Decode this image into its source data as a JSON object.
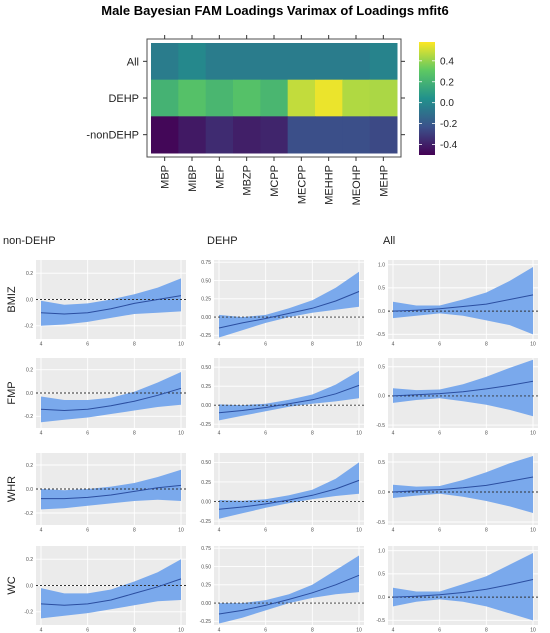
{
  "chart_data": [
    {
      "type": "heatmap",
      "title": "Male Bayesian FAM Loadings Varimax of Loadings mfit6",
      "rows": [
        "All",
        "DEHP",
        "-nonDEHP"
      ],
      "columns": [
        "MBP",
        "MIBP",
        "MEP",
        "MBZP",
        "MCPP",
        "MECPP",
        "MEHHP",
        "MEOHP",
        "MEHP"
      ],
      "values": [
        [
          -0.05,
          0.0,
          -0.05,
          -0.05,
          -0.05,
          -0.05,
          -0.05,
          -0.05,
          -0.02
        ],
        [
          0.2,
          0.27,
          0.22,
          0.27,
          0.22,
          0.48,
          0.55,
          0.45,
          0.44
        ],
        [
          -0.48,
          -0.42,
          -0.36,
          -0.4,
          -0.38,
          -0.24,
          -0.24,
          -0.24,
          -0.26
        ]
      ],
      "colorbar": {
        "min": -0.5,
        "max": 0.58,
        "ticks": [
          0.4,
          0.2,
          0.0,
          -0.2,
          -0.4
        ],
        "tick_labels": [
          "0.4",
          "0.2",
          "0.0",
          "-0.2",
          "-0.4"
        ]
      },
      "colormap": [
        "#440154",
        "#3b528b",
        "#21918c",
        "#5ec962",
        "#fde725"
      ]
    },
    {
      "type": "line",
      "panel_grid": {
        "columns": [
          "non-DEHP",
          "DEHP",
          "All"
        ],
        "rows": [
          "BMIZ",
          "FMP",
          "WHR",
          "WC"
        ]
      },
      "x_ticks": [
        "4",
        "6",
        "8",
        "10"
      ],
      "xlim": [
        4,
        10
      ],
      "reference_line": 0,
      "line_color": "#2b4ea0",
      "band_color": "#7aa9ec",
      "panels": [
        {
          "row": "BMIZ",
          "column": "non-DEHP",
          "ylim": [
            -0.3,
            0.3
          ],
          "y_ticks": [
            "0.2",
            "0.0",
            "-0.2"
          ],
          "x": [
            4,
            5,
            6,
            7,
            8,
            9,
            10
          ],
          "mean": [
            -0.1,
            -0.11,
            -0.1,
            -0.07,
            -0.03,
            0.0,
            0.03
          ],
          "lower": [
            -0.2,
            -0.19,
            -0.17,
            -0.14,
            -0.11,
            -0.1,
            -0.09
          ],
          "upper": [
            -0.01,
            -0.04,
            -0.03,
            0.0,
            0.04,
            0.09,
            0.16
          ]
        },
        {
          "row": "BMIZ",
          "column": "DEHP",
          "ylim": [
            -0.3,
            0.78
          ],
          "y_ticks": [
            "0.75",
            "0.50",
            "0.25",
            "0.00",
            "-0.25"
          ],
          "x": [
            4,
            5,
            6,
            7,
            8,
            9,
            10
          ],
          "mean": [
            -0.15,
            -0.08,
            -0.02,
            0.05,
            0.12,
            0.22,
            0.35
          ],
          "lower": [
            -0.28,
            -0.18,
            -0.08,
            0.0,
            0.06,
            0.1,
            0.14
          ],
          "upper": [
            0.03,
            0.0,
            0.03,
            0.12,
            0.23,
            0.4,
            0.62
          ]
        },
        {
          "row": "BMIZ",
          "column": "All",
          "ylim": [
            -0.6,
            1.1
          ],
          "y_ticks": [
            "1.0",
            "0.5",
            "0.0",
            "-0.5"
          ],
          "x": [
            4,
            5,
            6,
            7,
            8,
            9,
            10
          ],
          "mean": [
            0.0,
            0.02,
            0.05,
            0.1,
            0.15,
            0.25,
            0.35
          ],
          "lower": [
            -0.15,
            -0.1,
            -0.05,
            -0.1,
            -0.2,
            -0.3,
            -0.5
          ],
          "upper": [
            0.2,
            0.12,
            0.12,
            0.25,
            0.4,
            0.65,
            0.95
          ]
        },
        {
          "row": "FMP",
          "column": "non-DEHP",
          "ylim": [
            -0.3,
            0.3
          ],
          "y_ticks": [
            "0.2",
            "0.0",
            "-0.2"
          ],
          "x": [
            4,
            5,
            6,
            7,
            8,
            9,
            10
          ],
          "mean": [
            -0.14,
            -0.15,
            -0.14,
            -0.11,
            -0.07,
            -0.02,
            0.04
          ],
          "lower": [
            -0.25,
            -0.23,
            -0.21,
            -0.18,
            -0.15,
            -0.12,
            -0.1
          ],
          "upper": [
            -0.03,
            -0.06,
            -0.06,
            -0.04,
            0.01,
            0.09,
            0.18
          ]
        },
        {
          "row": "FMP",
          "column": "DEHP",
          "ylim": [
            -0.3,
            0.62
          ],
          "y_ticks": [
            "0.50",
            "0.25",
            "0.00",
            "-0.25"
          ],
          "x": [
            4,
            5,
            6,
            7,
            8,
            9,
            10
          ],
          "mean": [
            -0.1,
            -0.07,
            -0.03,
            0.02,
            0.07,
            0.15,
            0.26
          ],
          "lower": [
            -0.2,
            -0.14,
            -0.08,
            -0.02,
            0.02,
            0.05,
            0.09
          ],
          "upper": [
            0.01,
            0.0,
            0.02,
            0.07,
            0.14,
            0.27,
            0.45
          ]
        },
        {
          "row": "FMP",
          "column": "All",
          "ylim": [
            -0.55,
            0.65
          ],
          "y_ticks": [
            "0.5",
            "0.0",
            "-0.5"
          ],
          "x": [
            4,
            5,
            6,
            7,
            8,
            9,
            10
          ],
          "mean": [
            0.0,
            0.02,
            0.04,
            0.07,
            0.12,
            0.18,
            0.25
          ],
          "lower": [
            -0.12,
            -0.07,
            -0.04,
            -0.09,
            -0.15,
            -0.24,
            -0.35
          ],
          "upper": [
            0.13,
            0.1,
            0.11,
            0.2,
            0.33,
            0.48,
            0.62
          ]
        },
        {
          "row": "WHR",
          "column": "non-DEHP",
          "ylim": [
            -0.3,
            0.3
          ],
          "y_ticks": [
            "0.2",
            "0.0",
            "-0.2"
          ],
          "x": [
            4,
            5,
            6,
            7,
            8,
            9,
            10
          ],
          "mean": [
            -0.08,
            -0.08,
            -0.07,
            -0.05,
            -0.02,
            0.01,
            0.03
          ],
          "lower": [
            -0.17,
            -0.16,
            -0.14,
            -0.12,
            -0.1,
            -0.09,
            -0.1
          ],
          "upper": [
            0.0,
            -0.01,
            0.0,
            0.02,
            0.05,
            0.1,
            0.16
          ]
        },
        {
          "row": "WHR",
          "column": "DEHP",
          "ylim": [
            -0.3,
            0.62
          ],
          "y_ticks": [
            "0.50",
            "0.25",
            "0.00",
            "-0.25"
          ],
          "x": [
            4,
            5,
            6,
            7,
            8,
            9,
            10
          ],
          "mean": [
            -0.1,
            -0.07,
            -0.03,
            0.02,
            0.08,
            0.16,
            0.27
          ],
          "lower": [
            -0.22,
            -0.15,
            -0.08,
            -0.02,
            0.03,
            0.07,
            0.1
          ],
          "upper": [
            0.02,
            0.01,
            0.03,
            0.08,
            0.15,
            0.29,
            0.5
          ]
        },
        {
          "row": "WHR",
          "column": "All",
          "ylim": [
            -0.55,
            0.65
          ],
          "y_ticks": [
            "0.5",
            "0.0",
            "-0.5"
          ],
          "x": [
            4,
            5,
            6,
            7,
            8,
            9,
            10
          ],
          "mean": [
            0.0,
            0.02,
            0.04,
            0.07,
            0.11,
            0.18,
            0.25
          ],
          "lower": [
            -0.1,
            -0.06,
            -0.03,
            -0.08,
            -0.15,
            -0.24,
            -0.35
          ],
          "upper": [
            0.12,
            0.09,
            0.1,
            0.2,
            0.33,
            0.48,
            0.6
          ]
        },
        {
          "row": "WC",
          "column": "non-DEHP",
          "ylim": [
            -0.3,
            0.3
          ],
          "y_ticks": [
            "0.2",
            "0.0",
            "-0.2"
          ],
          "x": [
            4,
            5,
            6,
            7,
            8,
            9,
            10
          ],
          "mean": [
            -0.14,
            -0.15,
            -0.14,
            -0.11,
            -0.06,
            -0.01,
            0.05
          ],
          "lower": [
            -0.25,
            -0.23,
            -0.21,
            -0.18,
            -0.15,
            -0.12,
            -0.11
          ],
          "upper": [
            -0.02,
            -0.06,
            -0.06,
            -0.03,
            0.03,
            0.1,
            0.2
          ]
        },
        {
          "row": "WC",
          "column": "DEHP",
          "ylim": [
            -0.3,
            0.78
          ],
          "y_ticks": [
            "0.75",
            "0.50",
            "0.25",
            "0.00",
            "-0.25"
          ],
          "x": [
            4,
            5,
            6,
            7,
            8,
            9,
            10
          ],
          "mean": [
            -0.15,
            -0.1,
            -0.03,
            0.05,
            0.14,
            0.25,
            0.38
          ],
          "lower": [
            -0.28,
            -0.2,
            -0.1,
            0.0,
            0.07,
            0.12,
            0.15
          ],
          "upper": [
            0.0,
            0.0,
            0.04,
            0.12,
            0.25,
            0.45,
            0.65
          ]
        },
        {
          "row": "WC",
          "column": "All",
          "ylim": [
            -0.6,
            1.1
          ],
          "y_ticks": [
            "1.0",
            "0.5",
            "0.0",
            "-0.5"
          ],
          "x": [
            4,
            5,
            6,
            7,
            8,
            9,
            10
          ],
          "mean": [
            0.0,
            0.02,
            0.05,
            0.1,
            0.17,
            0.27,
            0.38
          ],
          "lower": [
            -0.2,
            -0.1,
            -0.05,
            -0.1,
            -0.2,
            -0.35,
            -0.5
          ],
          "upper": [
            0.2,
            0.12,
            0.12,
            0.28,
            0.45,
            0.7,
            0.95
          ]
        }
      ]
    }
  ]
}
